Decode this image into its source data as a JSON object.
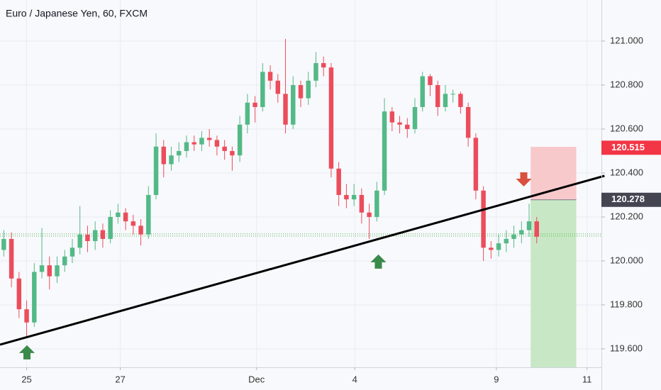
{
  "chart_data": {
    "type": "candlestick",
    "title": "Euro / Japanese Yen, 60, FXCM",
    "up_color": "#53b987",
    "down_color": "#eb4d5c",
    "grid": true,
    "xlim": [
      -0.5,
      78.5
    ],
    "xticks": [
      {
        "value": 3,
        "label": "25"
      },
      {
        "value": 15.3,
        "label": "27"
      },
      {
        "value": 33.2,
        "label": "Dec"
      },
      {
        "value": 46.1,
        "label": "4"
      },
      {
        "value": 64.7,
        "label": "9"
      },
      {
        "value": 76.6,
        "label": "11"
      }
    ],
    "ylim": [
      119.516,
      121.187
    ],
    "yticks": [
      {
        "value": 119.6,
        "label": "119.600"
      },
      {
        "value": 119.8,
        "label": "119.800"
      },
      {
        "value": 120.0,
        "label": "120.000"
      },
      {
        "value": 120.2,
        "label": "120.200"
      },
      {
        "value": 120.4,
        "label": "120.400"
      },
      {
        "value": 120.6,
        "label": "120.600"
      },
      {
        "value": 120.8,
        "label": "120.800"
      },
      {
        "value": 121.0,
        "label": "121.000"
      }
    ],
    "open": [
      120.05,
      120.1,
      119.92,
      119.78,
      119.72,
      119.95,
      119.98,
      119.93,
      119.98,
      120.02,
      120.06,
      120.12,
      120.09,
      120.14,
      120.1,
      120.2,
      120.22,
      120.18,
      120.16,
      120.12,
      120.3,
      120.52,
      120.44,
      120.48,
      120.5,
      120.54,
      120.53,
      120.56,
      120.55,
      120.52,
      120.5,
      120.48,
      120.62,
      120.72,
      120.7,
      120.86,
      120.82,
      120.76,
      120.62,
      120.8,
      120.74,
      120.82,
      120.9,
      120.88,
      120.42,
      120.3,
      120.28,
      120.3,
      120.22,
      120.2,
      120.32,
      120.68,
      120.63,
      120.62,
      120.6,
      120.7,
      120.84,
      120.8,
      120.7,
      120.76,
      120.76,
      120.7,
      120.56,
      120.32,
      120.06,
      120.05,
      120.08,
      120.1,
      120.12,
      120.14,
      120.18
    ],
    "high": [
      120.14,
      120.13,
      119.95,
      119.82,
      119.99,
      120.15,
      120.02,
      120.02,
      120.05,
      120.1,
      120.25,
      120.16,
      120.18,
      120.17,
      120.23,
      120.26,
      120.24,
      120.21,
      120.19,
      120.34,
      120.58,
      120.55,
      120.52,
      120.54,
      120.57,
      120.57,
      120.59,
      120.6,
      120.57,
      120.55,
      120.52,
      120.66,
      120.76,
      120.75,
      120.9,
      120.89,
      120.85,
      121.01,
      120.84,
      120.82,
      120.86,
      120.95,
      120.93,
      120.9,
      120.45,
      120.35,
      120.35,
      120.33,
      120.26,
      120.36,
      120.74,
      120.7,
      120.66,
      120.65,
      120.74,
      120.86,
      120.85,
      120.82,
      120.8,
      120.78,
      120.77,
      120.72,
      120.58,
      120.34,
      120.09,
      120.12,
      120.14,
      120.16,
      120.18,
      120.26,
      120.2
    ],
    "low": [
      120.02,
      119.88,
      119.74,
      119.65,
      119.7,
      119.92,
      119.87,
      119.9,
      119.95,
      119.99,
      120.03,
      120.04,
      120.05,
      120.06,
      120.08,
      120.17,
      120.14,
      120.12,
      120.07,
      120.1,
      120.28,
      120.38,
      120.41,
      120.45,
      120.47,
      120.5,
      120.5,
      120.52,
      120.48,
      120.46,
      120.41,
      120.45,
      120.58,
      120.63,
      120.68,
      120.78,
      120.72,
      120.58,
      120.6,
      120.7,
      120.71,
      120.79,
      120.84,
      120.38,
      120.25,
      120.24,
      120.25,
      120.17,
      120.1,
      120.18,
      120.3,
      120.59,
      120.58,
      120.56,
      120.58,
      120.68,
      120.75,
      120.66,
      120.68,
      120.72,
      120.67,
      120.52,
      120.28,
      120.0,
      120.01,
      120.02,
      120.04,
      120.06,
      120.08,
      120.11,
      120.08
    ],
    "close": [
      120.1,
      119.92,
      119.78,
      119.72,
      119.95,
      119.98,
      119.93,
      119.98,
      120.02,
      120.06,
      120.12,
      120.09,
      120.14,
      120.1,
      120.2,
      120.22,
      120.18,
      120.16,
      120.12,
      120.3,
      120.52,
      120.44,
      120.48,
      120.5,
      120.54,
      120.53,
      120.56,
      120.55,
      120.52,
      120.5,
      120.48,
      120.62,
      120.72,
      120.7,
      120.86,
      120.82,
      120.76,
      120.62,
      120.8,
      120.74,
      120.82,
      120.9,
      120.88,
      120.42,
      120.3,
      120.28,
      120.3,
      120.22,
      120.2,
      120.32,
      120.68,
      120.63,
      120.62,
      120.6,
      120.7,
      120.84,
      120.8,
      120.7,
      120.76,
      120.76,
      120.7,
      120.56,
      120.32,
      120.06,
      120.05,
      120.08,
      120.1,
      120.12,
      120.14,
      120.18,
      120.11
    ],
    "trendline": {
      "x": [
        -0.5,
        78.9
      ],
      "y": [
        119.619,
        120.387
      ],
      "color": "#000000"
    },
    "levels": [
      120.123,
      120.113
    ],
    "position": {
      "x": [
        69.2,
        75.2
      ],
      "entry": 120.278,
      "stop": 120.519,
      "target": 119.516,
      "stop_color": "#f8c9cb",
      "target_color": "#c8e8c5"
    },
    "arrows": [
      {
        "x": 3.04,
        "y": 119.581,
        "direction": "up",
        "color": "#3a8a4a"
      },
      {
        "x": 49.2,
        "y": 119.994,
        "direction": "up",
        "color": "#3a8a4a"
      },
      {
        "x": 68.3,
        "y": 120.374,
        "direction": "down",
        "color": "#d9503f"
      }
    ],
    "price_labels": [
      {
        "value": 120.515,
        "label": "120.515",
        "color": "#f23645"
      },
      {
        "value": 120.278,
        "label": "120.278",
        "color": "#434651"
      }
    ]
  }
}
